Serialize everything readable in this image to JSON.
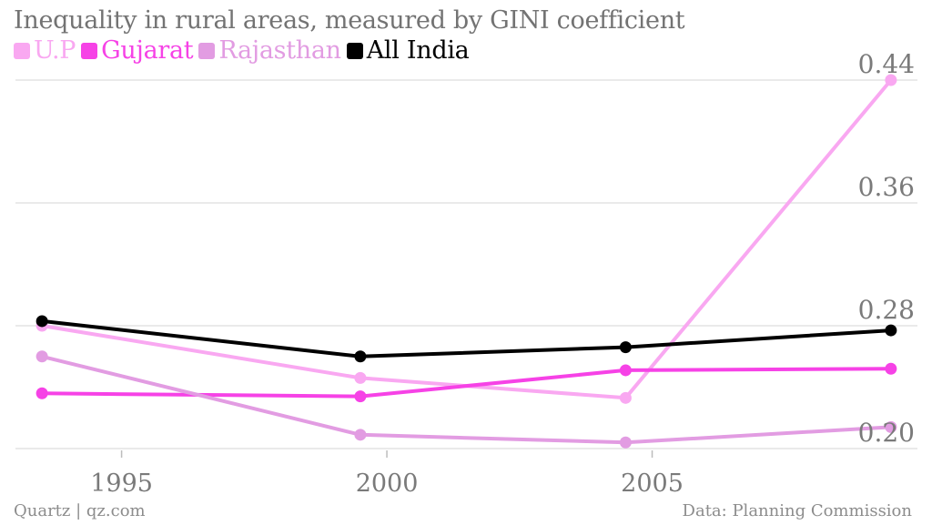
{
  "chart_data": {
    "type": "line",
    "title": "Inequality in rural areas, measured by GINI coefficient",
    "xlabel": "",
    "ylabel": "",
    "x": [
      1993.5,
      1999.5,
      2004.5,
      2009.5
    ],
    "xticks": [
      1995,
      2000,
      2005
    ],
    "xlim": [
      1993,
      2010
    ],
    "yticks": [
      0.2,
      0.28,
      0.36,
      0.44
    ],
    "ytick_labels": [
      "0.20",
      "0.28",
      "0.36",
      "0.44"
    ],
    "ylim": [
      0.2,
      0.44
    ],
    "grid": true,
    "legend_position": "top-left",
    "series": [
      {
        "name": "U.P",
        "color": "#f9a8f1",
        "values": [
          0.28,
          0.246,
          0.233,
          0.44
        ]
      },
      {
        "name": "Gujarat",
        "color": "#f642e6",
        "values": [
          0.236,
          0.234,
          0.251,
          0.252
        ]
      },
      {
        "name": "Rajasthan",
        "color": "#e29ce2",
        "values": [
          0.26,
          0.209,
          0.204,
          0.214
        ]
      },
      {
        "name": "All India",
        "color": "#000000",
        "values": [
          0.283,
          0.26,
          0.266,
          0.277
        ]
      }
    ]
  },
  "footer": {
    "source_left": "Quartz | qz.com",
    "source_right": "Data: Planning Commission"
  }
}
